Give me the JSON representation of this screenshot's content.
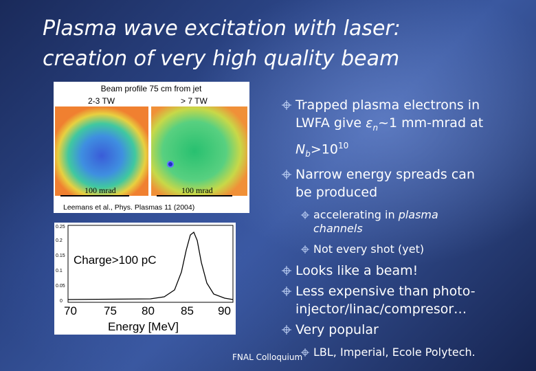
{
  "title": {
    "line1": "Plasma wave excitation with laser:",
    "line2": "creation of very high quality beam"
  },
  "figure_top": {
    "heading": "Beam profile 75 cm from jet",
    "left_label": "2-3 TW",
    "right_label": "> 7 TW",
    "scale_left": "100 mrad",
    "scale_right": "100 mrad",
    "citation": "Leemans et al., Phys. Plasmas 11 (2004)"
  },
  "figure_bottom": {
    "annotation": "Charge>100 pC",
    "xlabel": "Energy [MeV]",
    "x_ticks": [
      "70",
      "75",
      "80",
      "85",
      "90"
    ],
    "y_ticks": [
      "0.25",
      "0.2",
      "0.15",
      "0.1",
      "0.05",
      "0"
    ]
  },
  "bullets": {
    "b1_line1": "Trapped plasma electrons in",
    "b1_line2_pre": "LWFA give ",
    "b1_eps": "ε",
    "b1_eps_sub": "n",
    "b1_line2_post": "~1 mm-mrad at",
    "b1_N": "N",
    "b1_N_sub": "b",
    "b1_gt": ">10",
    "b1_exp": "10",
    "b2_line1": "Narrow energy spreads can",
    "b2_line2": "be produced",
    "s1_pre": "accelerating in ",
    "s1_em": "plasma",
    "s1_em2": "channels",
    "s2": "Not every shot (yet)",
    "b3": "Looks like a beam!",
    "b4_line1": "Less expensive than photo-",
    "b4_line2": "injector/linac/compresor…",
    "b5": "Very popular",
    "s3": "LBL, Imperial, Ecole Polytech."
  },
  "footer": "FNAL Colloquium",
  "icons": {
    "bullet": "crosshair-bullet-icon"
  }
}
